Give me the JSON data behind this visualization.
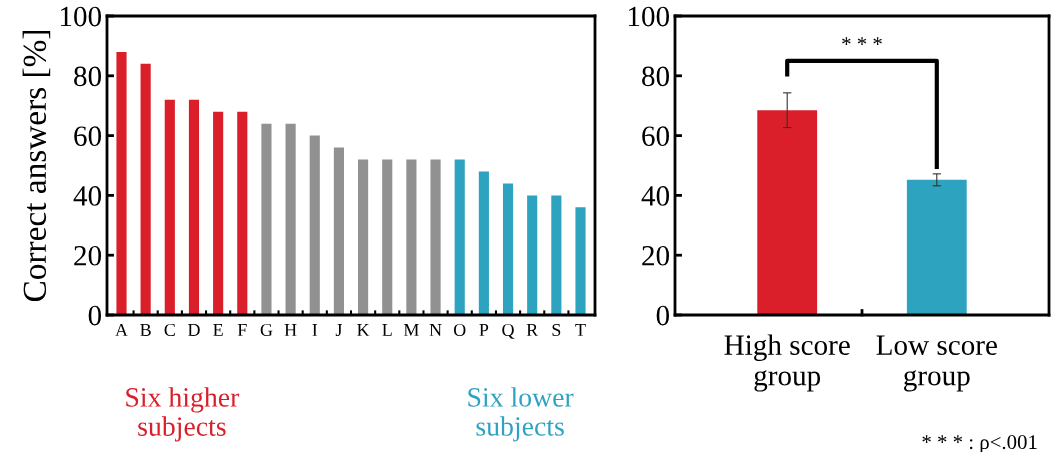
{
  "chart_data": [
    {
      "type": "bar",
      "ylabel": "Correct answers [%]",
      "categories": [
        "A",
        "B",
        "C",
        "D",
        "E",
        "F",
        "G",
        "H",
        "I",
        "J",
        "K",
        "L",
        "M",
        "N",
        "O",
        "P",
        "Q",
        "R",
        "S",
        "T"
      ],
      "values": [
        88,
        84,
        72,
        72,
        68,
        68,
        64,
        64,
        60,
        56,
        52,
        52,
        52,
        52,
        52,
        48,
        44,
        40,
        40,
        36
      ],
      "colors": [
        "#da1f2a",
        "#da1f2a",
        "#da1f2a",
        "#da1f2a",
        "#da1f2a",
        "#da1f2a",
        "#919191",
        "#919191",
        "#919191",
        "#919191",
        "#919191",
        "#919191",
        "#919191",
        "#919191",
        "#2ea3c0",
        "#2ea3c0",
        "#2ea3c0",
        "#2ea3c0",
        "#2ea3c0",
        "#2ea3c0"
      ],
      "ylim": [
        0,
        100
      ],
      "yticks": [
        0,
        20,
        40,
        60,
        80,
        100
      ],
      "grid": false,
      "annotations": [
        "Six higher\nsubjects",
        "Six lower\nsubjects"
      ]
    },
    {
      "type": "bar",
      "categories": [
        "High score\ngroup",
        "Low score\ngroup"
      ],
      "values": [
        68.5,
        45.2
      ],
      "errors": [
        5.8,
        2.0
      ],
      "colors": [
        "#da1f2a",
        "#2ea3c0"
      ],
      "ylim": [
        0,
        100
      ],
      "yticks": [
        0,
        20,
        40,
        60,
        80,
        100
      ],
      "grid": false,
      "annotations": [
        "* * *",
        "* * * : ρ<.001"
      ]
    }
  ]
}
